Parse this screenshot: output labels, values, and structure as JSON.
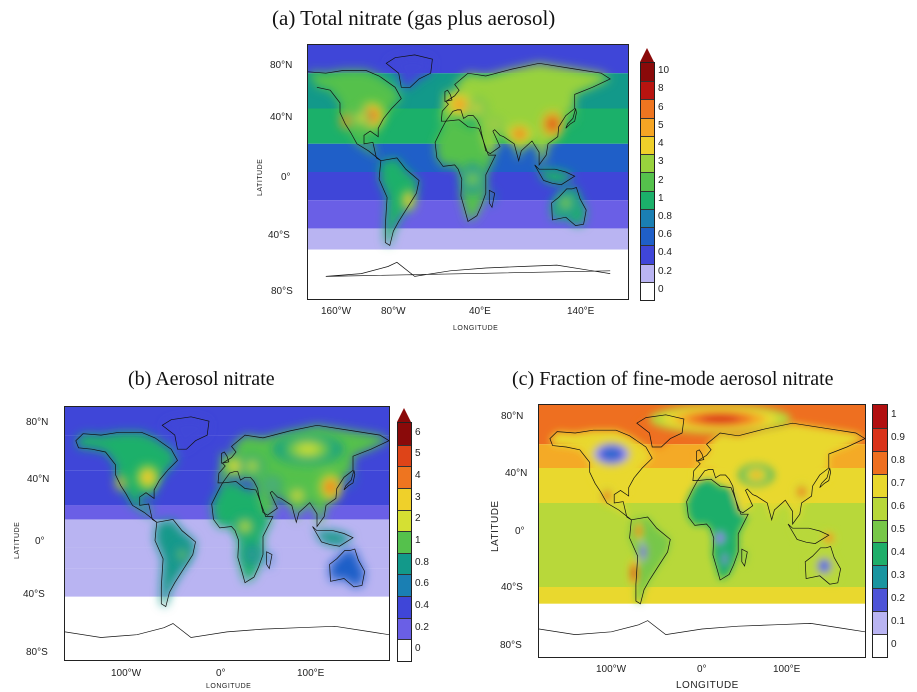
{
  "palettes": {
    "total": [
      "#ffffff",
      "#b9b4f2",
      "#6a5fe6",
      "#3f46d8",
      "#1f5fc8",
      "#1a7fb3",
      "#12998a",
      "#1bb06a",
      "#55c14c",
      "#98d23d",
      "#d5e033",
      "#efd02a",
      "#f5a524",
      "#ee7520",
      "#de4418",
      "#b81410",
      "#8a0a0a"
    ],
    "aerosol": [
      "#ffffff",
      "#b9b4f2",
      "#6a5fe6",
      "#3f46d8",
      "#1f5fc8",
      "#1a7fb3",
      "#12998a",
      "#1bb06a",
      "#55c14c",
      "#98d23d",
      "#d5e033",
      "#efd02a",
      "#f5a524",
      "#ee7520",
      "#de4418",
      "#b81410",
      "#8a0a0a"
    ],
    "fraction": [
      "#ffffff",
      "#b9b4f2",
      "#4e54d8",
      "#2a6ccf",
      "#1a95a0",
      "#1fae6a",
      "#77c748",
      "#b8d83a",
      "#e9d82e",
      "#f4aa26",
      "#ee6f20",
      "#d9331a",
      "#b10f10"
    ]
  },
  "panels": [
    {
      "id": "total",
      "title": "(a) Total nitrate (gas plus aerosol)",
      "ylabel": "LATITUDE",
      "xlabel": "LONGITUDE",
      "xticks": [
        "160°W",
        "80°W",
        "40°E",
        "140°E"
      ],
      "yticks": [
        "80°N",
        "40°N",
        "0°",
        "40°S",
        "80°S"
      ],
      "colorbar_labels": [
        "0",
        "0.2",
        "0.4",
        "0.6",
        "0.8",
        "1",
        "2",
        "3",
        "4",
        "5",
        "6",
        "8",
        "10"
      ],
      "colorbar_top_arrow": true,
      "map_center_lon": 20
    },
    {
      "id": "aerosol",
      "title": "(b) Aerosol nitrate",
      "ylabel": "LATITUDE",
      "xlabel": "LONGITUDE",
      "xticks": [
        "100°W",
        "0°",
        "100°E"
      ],
      "yticks": [
        "80°N",
        "40°N",
        "0°",
        "40°S",
        "80°S"
      ],
      "colorbar_labels": [
        "0",
        "0.2",
        "0.4",
        "0.6",
        "0.8",
        "1",
        "2",
        "3",
        "4",
        "5",
        "6"
      ],
      "colorbar_top_arrow": true,
      "map_center_lon": 0
    },
    {
      "id": "fraction",
      "title": "(c) Fraction of fine-mode aerosol nitrate",
      "ylabel": "LATITUDE",
      "xlabel": "LONGITUDE",
      "xticks": [
        "100°W",
        "0°",
        "100°E"
      ],
      "yticks": [
        "80°N",
        "40°N",
        "0°",
        "40°S",
        "80°S"
      ],
      "colorbar_labels": [
        "0",
        "0.1",
        "0.2",
        "0.3",
        "0.4",
        "0.5",
        "0.6",
        "0.7",
        "0.8",
        "0.9",
        "1"
      ],
      "colorbar_top_arrow": false,
      "map_center_lon": 0
    }
  ]
}
